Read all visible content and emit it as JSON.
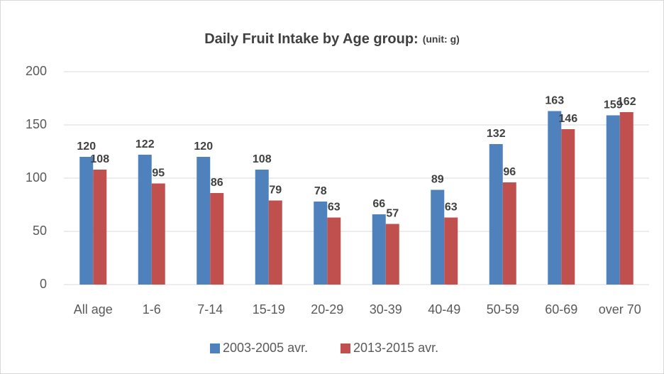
{
  "chart_data": {
    "type": "bar",
    "title": "Daily Fruit Intake by Age group:",
    "subtitle": "(unit: g)",
    "categories": [
      "All age",
      "1-6",
      "7-14",
      "15-19",
      "20-29",
      "30-39",
      "40-49",
      "50-59",
      "60-69",
      "over 70"
    ],
    "series": [
      {
        "name": "2003-2005 avr.",
        "color": "#4f81bd",
        "values": [
          120,
          122,
          120,
          108,
          78,
          66,
          89,
          132,
          163,
          159
        ]
      },
      {
        "name": "2013-2015 avr.",
        "color": "#c0504d",
        "values": [
          108,
          95,
          86,
          79,
          63,
          57,
          63,
          96,
          146,
          162
        ]
      }
    ],
    "ylim": [
      0,
      200
    ],
    "yticks": [
      0,
      50,
      100,
      150,
      200
    ],
    "grid": true,
    "legend": "bottom"
  }
}
